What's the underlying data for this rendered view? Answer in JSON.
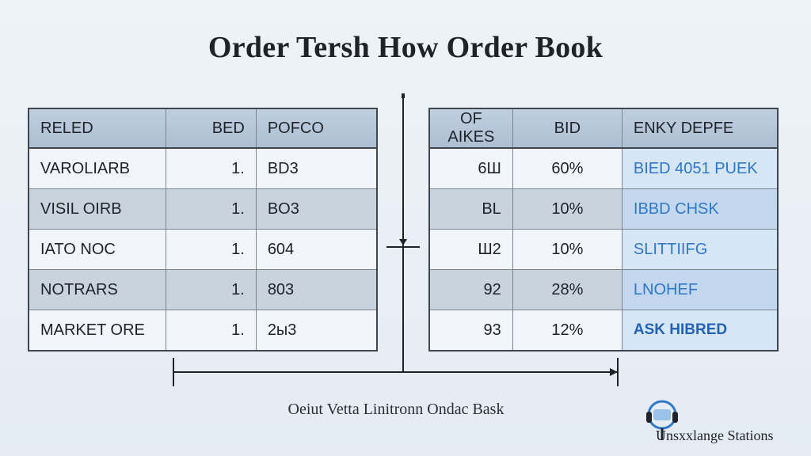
{
  "title": "Order Tersh How Order Book",
  "left_table": {
    "headers": [
      "RELED",
      "BED",
      "POFCO"
    ],
    "rows": [
      [
        "VAROLIARB",
        "1.",
        "BD3"
      ],
      [
        "VISIL OIRB",
        "1.",
        "BO3"
      ],
      [
        "IATO NOC",
        "1.",
        "604"
      ],
      [
        "NOTRARS",
        "1.",
        "803"
      ],
      [
        "MARKET ORE",
        "1.",
        "2ы3"
      ]
    ]
  },
  "right_table": {
    "headers": [
      "OF AIKES",
      "BID",
      "ENKY DEPFE"
    ],
    "rows": [
      [
        "6Ш",
        "60%",
        "BIED 4051 PUEK"
      ],
      [
        "BL",
        "10%",
        "IBBD CHSK"
      ],
      [
        "Ш2",
        "10%",
        "SLITTIIFG"
      ],
      [
        "92",
        "28%",
        "LNOHEF"
      ],
      [
        "93",
        "12%",
        "ASK HIBRED"
      ]
    ]
  },
  "caption": "Oeiut Vetta Linitronn Ondac Bask",
  "brand": {
    "name": "Unsxxlange Stations",
    "icon": "headset-logo-icon"
  },
  "colors": {
    "header_bg": "#b4c4d7",
    "accent_text": "#2f78c8",
    "border": "#3e4650"
  }
}
